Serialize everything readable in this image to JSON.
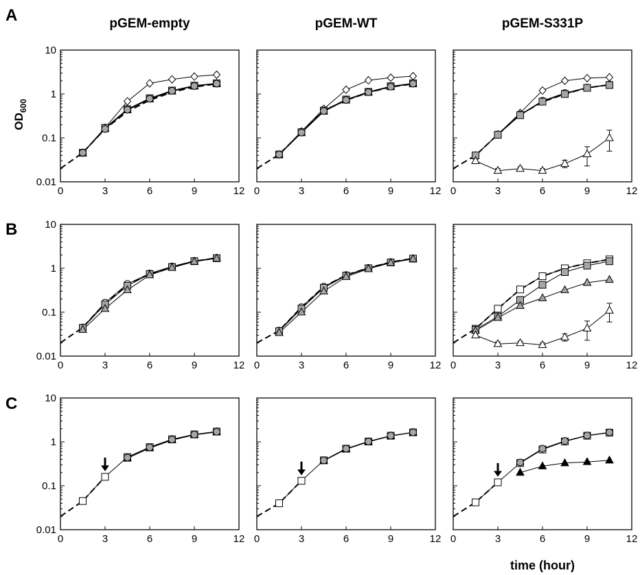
{
  "figure": {
    "row_labels": [
      "A",
      "B",
      "C"
    ],
    "column_titles": [
      "pGEM-empty",
      "pGEM-WT",
      "pGEM-S331P"
    ],
    "y_axis_label": "OD",
    "y_axis_label_sub": "600",
    "x_axis_label": "time (hour)",
    "colors": {
      "line": "#000000",
      "open_fill": "#ffffff",
      "gray_fill": "#a6a6a6",
      "black_fill": "#000000"
    }
  },
  "chart_data": [
    {
      "type": "line",
      "panel": "A",
      "column": "pGEM-empty",
      "xlim": [
        0,
        12
      ],
      "ylim": [
        0.01,
        10
      ],
      "yscale": "log",
      "x_ticks": [
        "0",
        "3",
        "6",
        "9",
        "12"
      ],
      "y_ticks": [
        "0.01",
        "0.1",
        "1",
        "10"
      ],
      "series": [
        {
          "marker": "dashed-line",
          "x": [
            0,
            1.5,
            3,
            4.5,
            6,
            7.5,
            9,
            10.5
          ],
          "y": [
            0.02,
            0.046,
            0.16,
            0.4,
            0.72,
            1.1,
            1.45,
            1.7
          ]
        },
        {
          "marker": "diamond-open",
          "x": [
            1.5,
            3,
            4.5,
            6,
            7.5,
            9,
            10.5
          ],
          "y": [
            0.046,
            0.17,
            0.68,
            1.75,
            2.15,
            2.5,
            2.75
          ]
        },
        {
          "marker": "square-gray",
          "x": [
            1.5,
            3,
            4.5,
            6,
            7.5,
            9,
            10.5
          ],
          "y": [
            0.046,
            0.17,
            0.45,
            0.8,
            1.2,
            1.55,
            1.75
          ]
        },
        {
          "marker": "triangle-gray",
          "x": [
            1.5,
            3,
            4.5,
            6,
            7.5,
            9,
            10.5
          ],
          "y": [
            0.045,
            0.16,
            0.43,
            0.76,
            1.15,
            1.5,
            1.72
          ]
        },
        {
          "marker": "circle-gray",
          "x": [
            1.5,
            3,
            4.5,
            6,
            7.5,
            9,
            10.5
          ],
          "y": [
            0.046,
            0.16,
            0.44,
            0.78,
            1.18,
            1.52,
            1.72
          ]
        }
      ]
    },
    {
      "type": "line",
      "panel": "A",
      "column": "pGEM-WT",
      "xlim": [
        0,
        12
      ],
      "ylim": [
        0.01,
        10
      ],
      "yscale": "log",
      "x_ticks": [
        "0",
        "3",
        "6",
        "9",
        "12"
      ],
      "y_ticks": [
        "0.01",
        "0.1",
        "1",
        "10"
      ],
      "series": [
        {
          "marker": "dashed-line",
          "x": [
            0,
            1.5,
            3,
            4.5,
            6,
            7.5,
            9,
            10.5
          ],
          "y": [
            0.02,
            0.042,
            0.135,
            0.42,
            0.72,
            1.08,
            1.45,
            1.7
          ]
        },
        {
          "marker": "diamond-open",
          "x": [
            1.5,
            3,
            4.5,
            6,
            7.5,
            9,
            10.5
          ],
          "y": [
            0.042,
            0.14,
            0.46,
            1.25,
            2.05,
            2.35,
            2.55
          ]
        },
        {
          "marker": "square-gray",
          "x": [
            1.5,
            3,
            4.5,
            6,
            7.5,
            9,
            10.5
          ],
          "y": [
            0.042,
            0.135,
            0.42,
            0.75,
            1.12,
            1.5,
            1.75
          ]
        },
        {
          "marker": "triangle-gray",
          "x": [
            1.5,
            3,
            4.5,
            6,
            7.5,
            9,
            10.5
          ],
          "y": [
            0.041,
            0.13,
            0.4,
            0.72,
            1.08,
            1.45,
            1.7
          ]
        },
        {
          "marker": "circle-gray",
          "x": [
            1.5,
            3,
            4.5,
            6,
            7.5,
            9,
            10.5
          ],
          "y": [
            0.042,
            0.133,
            0.41,
            0.73,
            1.1,
            1.47,
            1.72
          ]
        }
      ]
    },
    {
      "type": "line",
      "panel": "A",
      "column": "pGEM-S331P",
      "xlim": [
        0,
        12
      ],
      "ylim": [
        0.01,
        10
      ],
      "yscale": "log",
      "x_ticks": [
        "0",
        "3",
        "6",
        "9",
        "12"
      ],
      "y_ticks": [
        "0.01",
        "0.1",
        "1",
        "10"
      ],
      "series": [
        {
          "marker": "dashed-line",
          "x": [
            0,
            1.5,
            3,
            4.5,
            6,
            7.5,
            9,
            10.5
          ],
          "y": [
            0.02,
            0.04,
            0.12,
            0.34,
            0.66,
            1.0,
            1.38,
            1.62
          ]
        },
        {
          "marker": "diamond-open",
          "x": [
            1.5,
            3,
            4.5,
            6,
            7.5,
            9,
            10.5
          ],
          "y": [
            0.04,
            0.12,
            0.37,
            1.2,
            2.0,
            2.3,
            2.4
          ]
        },
        {
          "marker": "circle-open",
          "x": [
            1.5,
            3,
            4.5,
            6,
            7.5,
            9,
            10.5
          ],
          "y": [
            0.04,
            0.12,
            0.34,
            0.7,
            1.05,
            1.4,
            1.65
          ]
        },
        {
          "marker": "square-gray",
          "x": [
            1.5,
            3,
            4.5,
            6,
            7.5,
            9,
            10.5
          ],
          "y": [
            0.04,
            0.118,
            0.33,
            0.67,
            1.0,
            1.38,
            1.6
          ]
        },
        {
          "marker": "triangle-open",
          "x": [
            1.5,
            3,
            4.5,
            6,
            7.5,
            9,
            10.5
          ],
          "y": [
            0.03,
            0.018,
            0.02,
            0.018,
            0.026,
            0.043,
            0.1
          ],
          "err": [
            0.003,
            0.002,
            0.002,
            0.002,
            0.005,
            0.02,
            0.05
          ]
        }
      ]
    },
    {
      "type": "line",
      "panel": "B",
      "column": "pGEM-empty",
      "xlim": [
        0,
        12
      ],
      "ylim": [
        0.01,
        10
      ],
      "yscale": "log",
      "x_ticks": [
        "0",
        "3",
        "6",
        "9",
        "12"
      ],
      "y_ticks": [
        "0.01",
        "0.1",
        "1",
        "10"
      ],
      "series": [
        {
          "marker": "dashed-line",
          "x": [
            0,
            1.5,
            3,
            4.5,
            6,
            7.5,
            9,
            10.5
          ],
          "y": [
            0.02,
            0.045,
            0.16,
            0.42,
            0.74,
            1.08,
            1.45,
            1.72
          ]
        },
        {
          "marker": "circle-open",
          "x": [
            1.5,
            3,
            4.5,
            6,
            7.5,
            9,
            10.5
          ],
          "y": [
            0.045,
            0.165,
            0.44,
            0.76,
            1.1,
            1.47,
            1.72
          ]
        },
        {
          "marker": "square-gray",
          "x": [
            1.5,
            3,
            4.5,
            6,
            7.5,
            9,
            10.5
          ],
          "y": [
            0.044,
            0.15,
            0.4,
            0.74,
            1.07,
            1.45,
            1.7
          ]
        },
        {
          "marker": "triangle-gray",
          "x": [
            1.5,
            3,
            4.5,
            6,
            7.5,
            9,
            10.5
          ],
          "y": [
            0.04,
            0.12,
            0.32,
            0.7,
            1.03,
            1.42,
            1.68
          ]
        }
      ]
    },
    {
      "type": "line",
      "panel": "B",
      "column": "pGEM-WT",
      "xlim": [
        0,
        12
      ],
      "ylim": [
        0.01,
        10
      ],
      "yscale": "log",
      "x_ticks": [
        "0",
        "3",
        "6",
        "9",
        "12"
      ],
      "y_ticks": [
        "0.01",
        "0.1",
        "1",
        "10"
      ],
      "series": [
        {
          "marker": "dashed-line",
          "x": [
            0,
            1.5,
            3,
            4.5,
            6,
            7.5,
            9,
            10.5
          ],
          "y": [
            0.02,
            0.038,
            0.13,
            0.38,
            0.7,
            1.02,
            1.38,
            1.68
          ]
        },
        {
          "marker": "circle-open",
          "x": [
            1.5,
            3,
            4.5,
            6,
            7.5,
            9,
            10.5
          ],
          "y": [
            0.038,
            0.13,
            0.38,
            0.7,
            1.02,
            1.38,
            1.68
          ]
        },
        {
          "marker": "square-gray",
          "x": [
            1.5,
            3,
            4.5,
            6,
            7.5,
            9,
            10.5
          ],
          "y": [
            0.037,
            0.12,
            0.36,
            0.68,
            1.0,
            1.36,
            1.66
          ]
        },
        {
          "marker": "triangle-gray",
          "x": [
            1.5,
            3,
            4.5,
            6,
            7.5,
            9,
            10.5
          ],
          "y": [
            0.034,
            0.1,
            0.3,
            0.64,
            0.97,
            1.33,
            1.63
          ]
        }
      ]
    },
    {
      "type": "line",
      "panel": "B",
      "column": "pGEM-S331P",
      "xlim": [
        0,
        12
      ],
      "ylim": [
        0.01,
        10
      ],
      "yscale": "log",
      "x_ticks": [
        "0",
        "3",
        "6",
        "9",
        "12"
      ],
      "y_ticks": [
        "0.01",
        "0.1",
        "1",
        "10"
      ],
      "series": [
        {
          "marker": "dashed-line",
          "x": [
            0,
            1.5,
            3,
            4.5,
            6,
            7.5,
            9,
            10.5
          ],
          "y": [
            0.02,
            0.042,
            0.12,
            0.33,
            0.66,
            1.0,
            1.3,
            1.6
          ]
        },
        {
          "marker": "square-open",
          "x": [
            1.5,
            3,
            4.5,
            6,
            7.5,
            9,
            10.5
          ],
          "y": [
            0.042,
            0.12,
            0.33,
            0.66,
            1.0,
            1.3,
            1.6
          ]
        },
        {
          "marker": "square-gray",
          "x": [
            1.5,
            3,
            4.5,
            6,
            7.5,
            9,
            10.5
          ],
          "y": [
            0.04,
            0.08,
            0.19,
            0.42,
            0.82,
            1.15,
            1.45
          ]
        },
        {
          "marker": "triangle-gray",
          "x": [
            1.5,
            3,
            4.5,
            6,
            7.5,
            9,
            10.5
          ],
          "y": [
            0.038,
            0.075,
            0.14,
            0.21,
            0.32,
            0.47,
            0.55
          ]
        },
        {
          "marker": "triangle-open",
          "x": [
            1.5,
            3,
            4.5,
            6,
            7.5,
            9,
            10.5
          ],
          "y": [
            0.03,
            0.019,
            0.02,
            0.018,
            0.027,
            0.043,
            0.11
          ],
          "err": [
            0.003,
            0.002,
            0.002,
            0.002,
            0.005,
            0.02,
            0.05
          ]
        }
      ]
    },
    {
      "type": "line",
      "panel": "C",
      "column": "pGEM-empty",
      "xlim": [
        0,
        12
      ],
      "ylim": [
        0.01,
        10
      ],
      "yscale": "log",
      "x_ticks": [
        "0",
        "3",
        "6",
        "9",
        "12"
      ],
      "y_ticks": [
        "0.01",
        "0.1",
        "1",
        "10"
      ],
      "annotation": {
        "type": "arrow",
        "x": 3
      },
      "series": [
        {
          "marker": "dashed-line",
          "x": [
            0,
            1.5,
            3
          ],
          "y": [
            0.02,
            0.045,
            0.16
          ]
        },
        {
          "marker": "square-open",
          "x": [
            1.5,
            3,
            4.5,
            6,
            7.5,
            9,
            10.5
          ],
          "y": [
            0.045,
            0.16,
            0.45,
            0.76,
            1.15,
            1.48,
            1.72
          ]
        },
        {
          "marker": "triangle-black",
          "x": [
            4.5,
            6,
            7.5,
            9,
            10.5
          ],
          "y": [
            0.42,
            0.72,
            1.1,
            1.44,
            1.68
          ]
        },
        {
          "marker": "circle-gray",
          "x": [
            4.5,
            6,
            7.5,
            9,
            10.5
          ],
          "y": [
            0.44,
            0.75,
            1.13,
            1.47,
            1.7
          ]
        }
      ]
    },
    {
      "type": "line",
      "panel": "C",
      "column": "pGEM-WT",
      "xlim": [
        0,
        12
      ],
      "ylim": [
        0.01,
        10
      ],
      "yscale": "log",
      "x_ticks": [
        "0",
        "3",
        "6",
        "9",
        "12"
      ],
      "y_ticks": [
        "0.01",
        "0.1",
        "1",
        "10"
      ],
      "annotation": {
        "type": "arrow",
        "x": 3
      },
      "series": [
        {
          "marker": "dashed-line",
          "x": [
            0,
            1.5,
            3
          ],
          "y": [
            0.02,
            0.04,
            0.13
          ]
        },
        {
          "marker": "square-open",
          "x": [
            1.5,
            3,
            4.5,
            6,
            7.5,
            9,
            10.5
          ],
          "y": [
            0.04,
            0.13,
            0.38,
            0.7,
            1.02,
            1.38,
            1.65
          ]
        },
        {
          "marker": "triangle-black",
          "x": [
            4.5,
            6,
            7.5,
            9,
            10.5
          ],
          "y": [
            0.37,
            0.68,
            1.0,
            1.36,
            1.63
          ]
        },
        {
          "marker": "circle-gray",
          "x": [
            4.5,
            6,
            7.5,
            9,
            10.5
          ],
          "y": [
            0.38,
            0.7,
            1.02,
            1.38,
            1.65
          ]
        }
      ]
    },
    {
      "type": "line",
      "panel": "C",
      "column": "pGEM-S331P",
      "xlim": [
        0,
        12
      ],
      "ylim": [
        0.01,
        10
      ],
      "yscale": "log",
      "x_ticks": [
        "0",
        "3",
        "6",
        "9",
        "12"
      ],
      "y_ticks": [
        "0.01",
        "0.1",
        "1",
        "10"
      ],
      "annotation": {
        "type": "arrow",
        "x": 3
      },
      "series": [
        {
          "marker": "dashed-line",
          "x": [
            0,
            1.5,
            3
          ],
          "y": [
            0.02,
            0.042,
            0.12
          ]
        },
        {
          "marker": "square-open",
          "x": [
            1.5,
            3,
            4.5,
            6,
            7.5,
            9,
            10.5
          ],
          "y": [
            0.042,
            0.12,
            0.33,
            0.67,
            1.02,
            1.38,
            1.62
          ]
        },
        {
          "marker": "circle-gray",
          "x": [
            4.5,
            6,
            7.5,
            9,
            10.5
          ],
          "y": [
            0.34,
            0.7,
            1.05,
            1.4,
            1.65
          ]
        },
        {
          "marker": "triangle-black",
          "x": [
            4.5,
            6,
            7.5,
            9,
            10.5
          ],
          "y": [
            0.2,
            0.28,
            0.33,
            0.35,
            0.38
          ]
        }
      ]
    }
  ]
}
